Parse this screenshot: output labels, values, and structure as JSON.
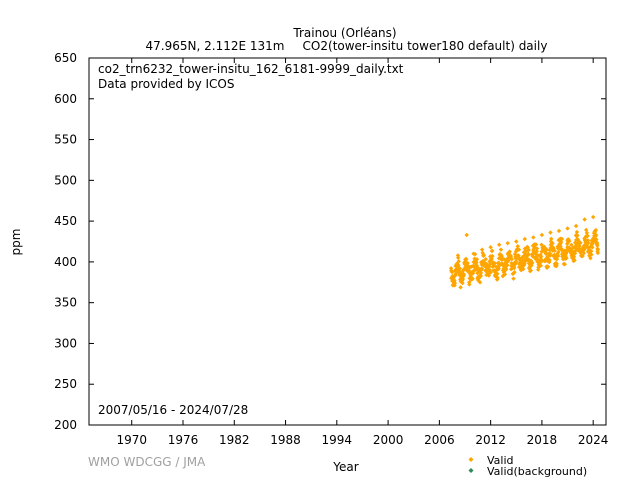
{
  "chart_data": {
    "type": "scatter",
    "title": "Trainou (Orléans)",
    "subtitle_left": "47.965N, 2.112E 131m",
    "subtitle_right": "CO2(tower-insitu tower180 default) daily",
    "file_label": "co2_trn6232_tower-insitu_162_6181-9999_daily.txt",
    "provider_label": "Data provided by ICOS",
    "date_range_label": "2007/05/16 - 2024/07/28",
    "credit": "WMO WDCGG / JMA",
    "xlabel": "Year",
    "ylabel": "ppm",
    "xlim": [
      1965.0,
      2025.5
    ],
    "ylim": [
      200,
      650
    ],
    "x_ticks": [
      1970,
      1976,
      1982,
      1988,
      1994,
      2000,
      2006,
      2012,
      2018,
      2024
    ],
    "y_ticks": [
      200,
      250,
      300,
      350,
      400,
      450,
      500,
      550,
      600,
      650
    ],
    "grid": false,
    "legend_position": "bottom-right",
    "series": [
      {
        "name": "Valid",
        "color": "#ffa500",
        "marker": "diamond",
        "data_start": 2007.37,
        "data_end": 2024.57,
        "trend": {
          "start_value": 385,
          "end_value": 422
        },
        "seasonal_amplitude": 9,
        "scatter_spread": 14,
        "x": [
          2007.4,
          2007.6,
          2007.9,
          2008.2,
          2008.5,
          2009.0,
          2009.2,
          2009.5,
          2010.0,
          2010.5,
          2011.0,
          2011.5,
          2012.0,
          2012.5,
          2013.0,
          2013.5,
          2014.0,
          2014.5,
          2015.0,
          2015.5,
          2016.0,
          2016.5,
          2017.0,
          2017.5,
          2018.0,
          2018.5,
          2019.0,
          2019.5,
          2020.0,
          2020.5,
          2021.0,
          2021.5,
          2022.0,
          2022.5,
          2023.0,
          2023.5,
          2024.0,
          2024.5
        ],
        "y": [
          380,
          372,
          395,
          405,
          376,
          400,
          433,
          375,
          410,
          380,
          415,
          384,
          418,
          388,
          421,
          390,
          423,
          392,
          425,
          395,
          428,
          398,
          430,
          400,
          433,
          404,
          436,
          406,
          438,
          408,
          441,
          410,
          444,
          412,
          452,
          414,
          455,
          416
        ]
      },
      {
        "name": "Valid(background)",
        "color": "#2e8b57",
        "marker": "diamond",
        "x": [],
        "y": []
      }
    ]
  }
}
